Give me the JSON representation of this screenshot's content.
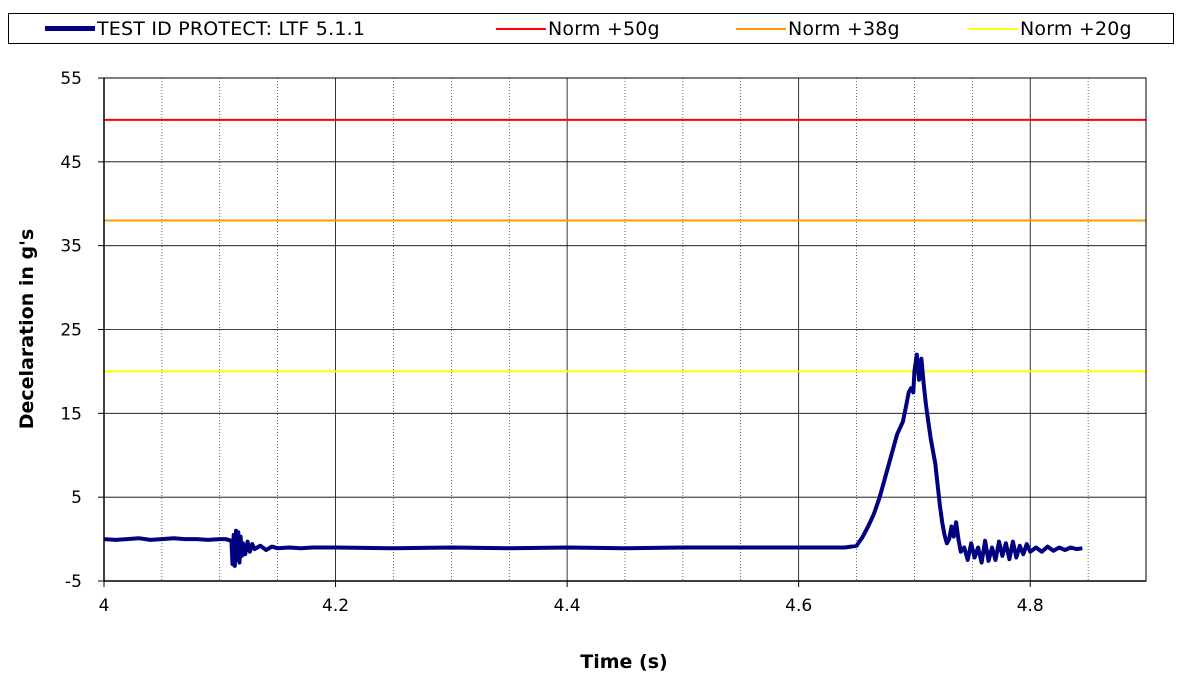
{
  "chart_data": {
    "type": "line",
    "title": "",
    "xlabel": "Time (s)",
    "ylabel": "Decelaration in g's",
    "xlim": [
      4.0,
      4.9
    ],
    "ylim": [
      -5,
      55
    ],
    "x_major_ticks": [
      "4",
      "4.2",
      "4.4",
      "4.6",
      "4.8"
    ],
    "y_ticks": [
      "-5",
      "5",
      "15",
      "25",
      "35",
      "45",
      "55"
    ],
    "grid": true,
    "legend_position": "top",
    "series": [
      {
        "name": "TEST ID PROTECT: LTF 5.1.1",
        "color": "#000080",
        "x": [
          4.0,
          4.01,
          4.02,
          4.03,
          4.04,
          4.05,
          4.06,
          4.07,
          4.08,
          4.09,
          4.1,
          4.105,
          4.11,
          4.111,
          4.112,
          4.113,
          4.114,
          4.115,
          4.116,
          4.117,
          4.118,
          4.119,
          4.12,
          4.122,
          4.124,
          4.126,
          4.128,
          4.13,
          4.135,
          4.14,
          4.145,
          4.15,
          4.16,
          4.17,
          4.18,
          4.2,
          4.25,
          4.3,
          4.35,
          4.4,
          4.45,
          4.5,
          4.55,
          4.6,
          4.62,
          4.64,
          4.65,
          4.655,
          4.66,
          4.665,
          4.67,
          4.675,
          4.68,
          4.685,
          4.69,
          4.693,
          4.695,
          4.697,
          4.699,
          4.7,
          4.702,
          4.704,
          4.706,
          4.708,
          4.71,
          4.712,
          4.714,
          4.716,
          4.718,
          4.72,
          4.722,
          4.724,
          4.726,
          4.728,
          4.73,
          4.732,
          4.734,
          4.736,
          4.738,
          4.74,
          4.743,
          4.746,
          4.749,
          4.752,
          4.755,
          4.758,
          4.761,
          4.764,
          4.767,
          4.77,
          4.773,
          4.776,
          4.779,
          4.782,
          4.785,
          4.788,
          4.791,
          4.794,
          4.797,
          4.8,
          4.805,
          4.81,
          4.815,
          4.82,
          4.825,
          4.83,
          4.835,
          4.84,
          4.845
        ],
        "y": [
          0.0,
          -0.1,
          0.0,
          0.1,
          -0.1,
          0.0,
          0.1,
          0.0,
          0.0,
          -0.1,
          0.0,
          0.0,
          -0.2,
          -3.0,
          0.5,
          -3.2,
          1.0,
          -2.5,
          0.8,
          -2.8,
          0.3,
          -2.0,
          -0.5,
          -1.8,
          -0.3,
          -1.5,
          -0.6,
          -1.2,
          -0.8,
          -1.3,
          -0.9,
          -1.1,
          -1.0,
          -1.1,
          -1.0,
          -1.0,
          -1.1,
          -1.0,
          -1.1,
          -1.0,
          -1.1,
          -1.0,
          -1.0,
          -1.0,
          -1.0,
          -1.0,
          -0.8,
          0.2,
          1.5,
          3.0,
          5.0,
          7.5,
          10.0,
          12.5,
          14.0,
          16.0,
          17.5,
          18.0,
          17.5,
          20.0,
          22.0,
          19.0,
          21.5,
          18.5,
          16.0,
          14.0,
          12.0,
          10.5,
          9.0,
          6.5,
          4.0,
          2.0,
          0.5,
          -0.5,
          0.0,
          1.5,
          0.3,
          2.0,
          0.0,
          -1.5,
          -1.0,
          -2.5,
          -0.5,
          -2.2,
          -1.0,
          -2.8,
          -0.2,
          -2.6,
          -1.0,
          -2.5,
          -0.3,
          -2.0,
          -0.5,
          -2.4,
          -0.3,
          -2.2,
          -0.8,
          -1.8,
          -0.6,
          -1.5,
          -1.0,
          -1.5,
          -0.9,
          -1.4,
          -1.0,
          -1.3,
          -1.0,
          -1.2,
          -1.1
        ]
      },
      {
        "name": "Norm +50g",
        "color": "#ff0000",
        "value": 50
      },
      {
        "name": "Norm +38g",
        "color": "#ff9900",
        "value": 38
      },
      {
        "name": "Norm +20g",
        "color": "#ffff00",
        "value": 20
      }
    ]
  }
}
